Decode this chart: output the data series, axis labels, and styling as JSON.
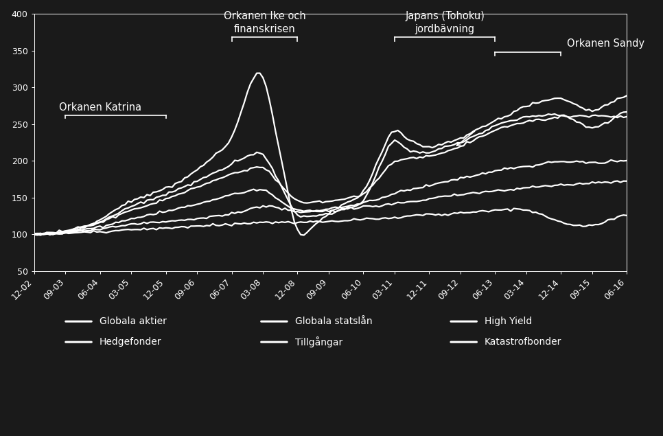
{
  "background_color": "#1a1a1a",
  "text_color": "#ffffff",
  "line_color": "#ffffff",
  "ylim": [
    50,
    400
  ],
  "yticks": [
    50,
    100,
    150,
    200,
    250,
    300,
    350,
    400
  ],
  "legend_labels": [
    "Globala aktier",
    "Globala statslån",
    "High Yield",
    "Hedgefonder",
    "Tillgångar",
    "Katastrofbonder"
  ],
  "xtick_labels": [
    "12-02",
    "09-03",
    "06-04",
    "03-05",
    "12-05",
    "09-06",
    "06-07",
    "03-08",
    "12-08",
    "09-09",
    "06-10",
    "03-11",
    "12-11",
    "09-12",
    "06-13",
    "03-14",
    "12-14",
    "09-15",
    "06-16"
  ],
  "n_ticks": 19,
  "n_points": 190
}
